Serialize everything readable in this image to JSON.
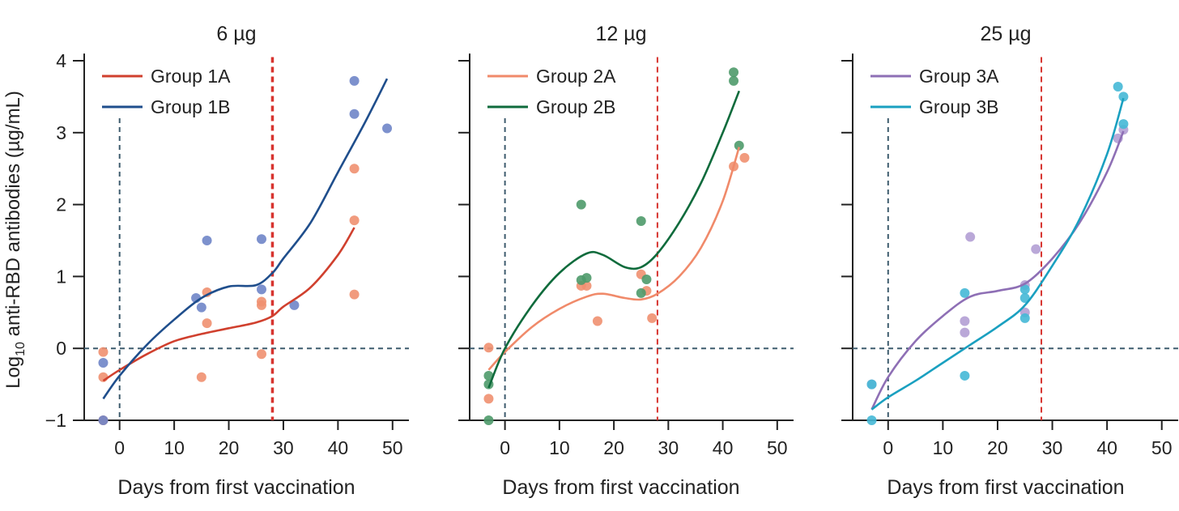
{
  "figure": {
    "ylabel_prefix": "Log",
    "ylabel_sub": "10",
    "ylabel_rest": " anti-RBD antibodies (µg/mL)"
  },
  "chart_data": [
    {
      "type": "scatter",
      "title": "6  µg",
      "xlabel": "Days from first vaccination",
      "xlim": [
        -5,
        53
      ],
      "ylim": [
        -1,
        4.1
      ],
      "xticks": [
        0,
        10,
        20,
        30,
        40,
        50
      ],
      "yticks": [
        -1,
        0,
        1,
        2,
        3,
        4
      ],
      "refline_x": 28,
      "refline_color": "#d7342f",
      "legend_position": "top-left",
      "series": [
        {
          "name": "Group 1A",
          "line_color": "#d0402e",
          "point_color": "#f09070",
          "points": [
            [
              -3,
              -0.05
            ],
            [
              -3,
              -0.4
            ],
            [
              -3,
              -1
            ],
            [
              15,
              -0.4
            ],
            [
              16,
              0.78
            ],
            [
              16,
              0.35
            ],
            [
              26,
              0.65
            ],
            [
              26,
              0.6
            ],
            [
              26,
              -0.08
            ],
            [
              43,
              2.5
            ],
            [
              43,
              1.78
            ],
            [
              43,
              0.75
            ]
          ],
          "curve": [
            [
              -3,
              -0.45
            ],
            [
              0,
              -0.3
            ],
            [
              5,
              -0.08
            ],
            [
              10,
              0.1
            ],
            [
              15,
              0.2
            ],
            [
              20,
              0.28
            ],
            [
              25,
              0.36
            ],
            [
              28,
              0.45
            ],
            [
              30,
              0.58
            ],
            [
              35,
              0.85
            ],
            [
              40,
              1.3
            ],
            [
              43,
              1.68
            ]
          ]
        },
        {
          "name": "Group 1B",
          "line_color": "#1f4e8c",
          "point_color": "#6f85c8",
          "points": [
            [
              -3,
              -0.2
            ],
            [
              -3,
              -1
            ],
            [
              14,
              0.7
            ],
            [
              15,
              0.57
            ],
            [
              16,
              1.5
            ],
            [
              26,
              1.52
            ],
            [
              26,
              0.82
            ],
            [
              32,
              0.6
            ],
            [
              43,
              3.72
            ],
            [
              43,
              3.26
            ],
            [
              49,
              3.06
            ]
          ],
          "curve": [
            [
              -3,
              -0.7
            ],
            [
              0,
              -0.38
            ],
            [
              5,
              0.05
            ],
            [
              10,
              0.4
            ],
            [
              15,
              0.7
            ],
            [
              20,
              0.86
            ],
            [
              25,
              0.88
            ],
            [
              28,
              1.05
            ],
            [
              30,
              1.25
            ],
            [
              35,
              1.75
            ],
            [
              40,
              2.45
            ],
            [
              45,
              3.15
            ],
            [
              49,
              3.75
            ]
          ]
        }
      ]
    },
    {
      "type": "scatter",
      "title": "12  µg",
      "xlabel": "Days from first vaccination",
      "xlim": [
        -5,
        53
      ],
      "ylim": [
        -1,
        4.1
      ],
      "xticks": [
        0,
        10,
        20,
        30,
        40,
        50
      ],
      "yticks": [
        -1,
        0,
        1,
        2,
        3,
        4
      ],
      "refline_x": 28,
      "refline_color": "#d7342f",
      "legend_position": "top-left",
      "series": [
        {
          "name": "Group 2A",
          "line_color": "#f08a6a",
          "point_color": "#f09070",
          "points": [
            [
              -3,
              0.01
            ],
            [
              -3,
              -0.7
            ],
            [
              14,
              0.87
            ],
            [
              15,
              0.87
            ],
            [
              17,
              0.38
            ],
            [
              25,
              1.03
            ],
            [
              26,
              0.8
            ],
            [
              27,
              0.42
            ],
            [
              42,
              2.53
            ],
            [
              44,
              2.65
            ]
          ],
          "curve": [
            [
              -3,
              -0.3
            ],
            [
              0,
              -0.05
            ],
            [
              5,
              0.3
            ],
            [
              10,
              0.55
            ],
            [
              15,
              0.72
            ],
            [
              18,
              0.76
            ],
            [
              22,
              0.7
            ],
            [
              25,
              0.68
            ],
            [
              28,
              0.76
            ],
            [
              32,
              1.0
            ],
            [
              36,
              1.4
            ],
            [
              40,
              2.05
            ],
            [
              43,
              2.8
            ]
          ]
        },
        {
          "name": "Group 2B",
          "line_color": "#0f6b3c",
          "point_color": "#4e9a6a",
          "points": [
            [
              -3,
              -0.38
            ],
            [
              -3,
              -0.5
            ],
            [
              -3,
              -1
            ],
            [
              14,
              2.0
            ],
            [
              14,
              0.95
            ],
            [
              15,
              0.98
            ],
            [
              25,
              1.77
            ],
            [
              25,
              0.77
            ],
            [
              26,
              0.96
            ],
            [
              42,
              3.84
            ],
            [
              42,
              3.72
            ],
            [
              43,
              2.82
            ]
          ],
          "curve": [
            [
              -3,
              -0.55
            ],
            [
              0,
              0.0
            ],
            [
              5,
              0.6
            ],
            [
              10,
              1.05
            ],
            [
              15,
              1.32
            ],
            [
              18,
              1.3
            ],
            [
              22,
              1.13
            ],
            [
              25,
              1.13
            ],
            [
              28,
              1.32
            ],
            [
              32,
              1.75
            ],
            [
              36,
              2.3
            ],
            [
              40,
              3.0
            ],
            [
              43,
              3.58
            ]
          ]
        }
      ]
    },
    {
      "type": "scatter",
      "title": "25  µg",
      "xlabel": "Days from first vaccination",
      "xlim": [
        -5,
        53
      ],
      "ylim": [
        -1,
        4.1
      ],
      "xticks": [
        0,
        10,
        20,
        30,
        40,
        50
      ],
      "yticks": [
        -1,
        0,
        1,
        2,
        3,
        4
      ],
      "refline_x": 28,
      "refline_color": "#d7342f",
      "legend_position": "top-left",
      "series": [
        {
          "name": "Group 3A",
          "line_color": "#8e6fb5",
          "point_color": "#b39fd4",
          "points": [
            [
              -3,
              -0.5
            ],
            [
              14,
              0.38
            ],
            [
              14,
              0.22
            ],
            [
              15,
              1.55
            ],
            [
              25,
              0.88
            ],
            [
              25,
              0.5
            ],
            [
              27,
              1.38
            ],
            [
              42,
              2.92
            ],
            [
              43,
              3.04
            ]
          ],
          "curve": [
            [
              -3,
              -0.85
            ],
            [
              0,
              -0.4
            ],
            [
              5,
              0.1
            ],
            [
              10,
              0.45
            ],
            [
              15,
              0.72
            ],
            [
              20,
              0.8
            ],
            [
              25,
              0.9
            ],
            [
              30,
              1.25
            ],
            [
              35,
              1.75
            ],
            [
              40,
              2.45
            ],
            [
              43,
              3.02
            ]
          ]
        },
        {
          "name": "Group 3B",
          "line_color": "#1aa0c0",
          "point_color": "#45b8d6",
          "points": [
            [
              -3,
              -0.5
            ],
            [
              -3,
              -1
            ],
            [
              14,
              0.77
            ],
            [
              14,
              -0.38
            ],
            [
              25,
              0.82
            ],
            [
              25,
              0.7
            ],
            [
              25,
              0.42
            ],
            [
              42,
              3.64
            ],
            [
              43,
              3.5
            ],
            [
              43,
              3.12
            ]
          ],
          "curve": [
            [
              -3,
              -0.85
            ],
            [
              0,
              -0.68
            ],
            [
              5,
              -0.45
            ],
            [
              10,
              -0.2
            ],
            [
              15,
              0.05
            ],
            [
              20,
              0.3
            ],
            [
              25,
              0.6
            ],
            [
              30,
              1.15
            ],
            [
              35,
              1.8
            ],
            [
              40,
              2.7
            ],
            [
              43,
              3.48
            ]
          ]
        }
      ]
    }
  ]
}
